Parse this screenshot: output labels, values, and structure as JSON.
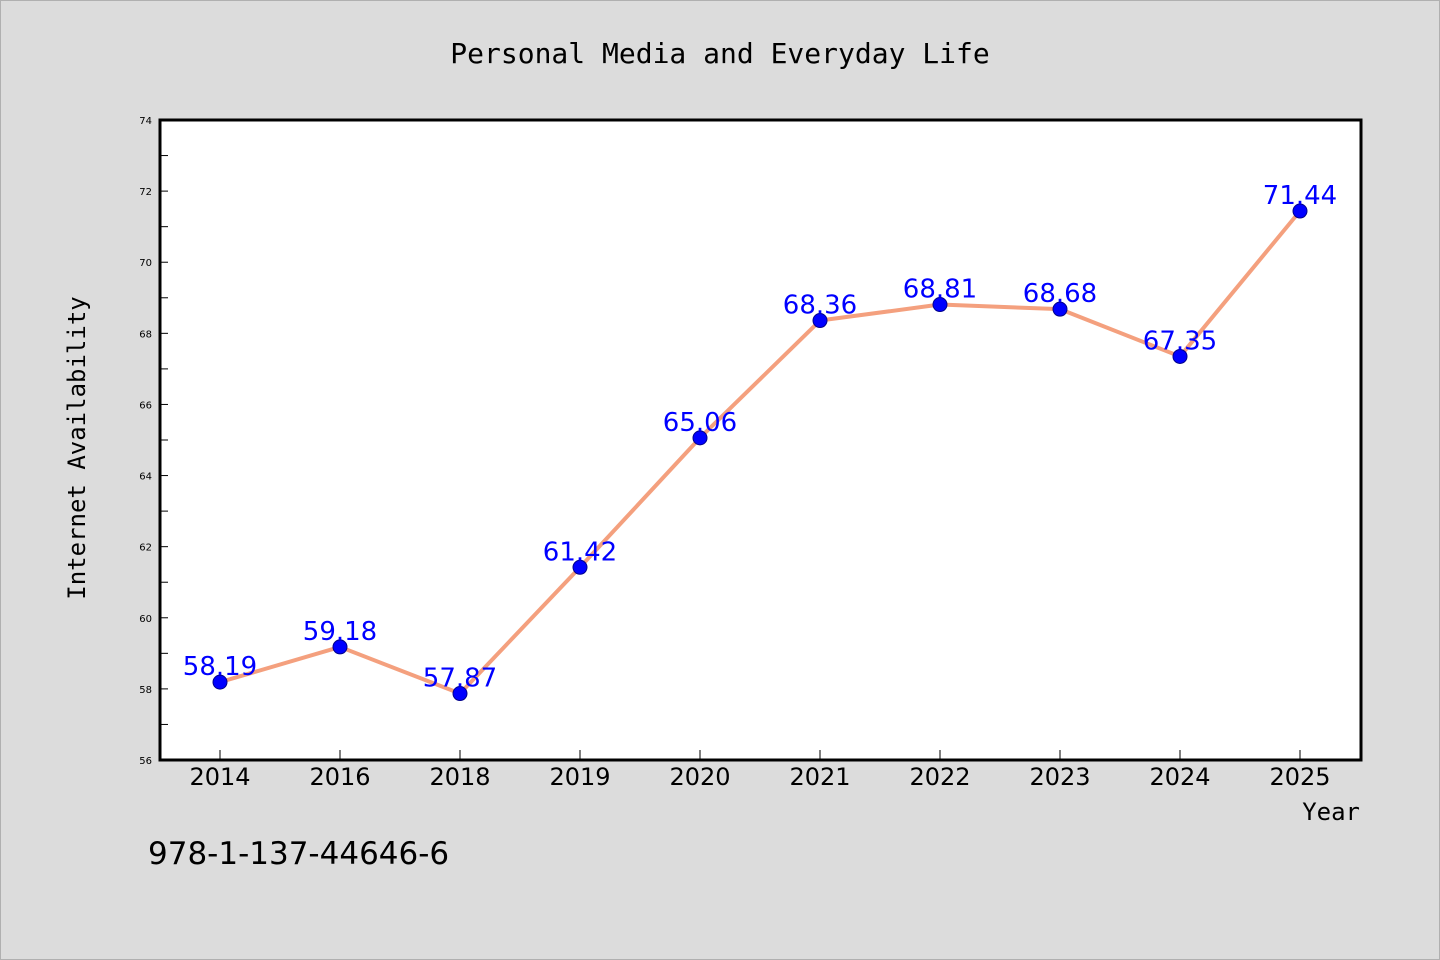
{
  "chart_data": {
    "type": "line",
    "title": "Personal Media and Everyday Life",
    "xlabel": "Year",
    "ylabel": "Internet Availability",
    "categories": [
      "2014",
      "2016",
      "2018",
      "2019",
      "2020",
      "2021",
      "2022",
      "2023",
      "2024",
      "2025"
    ],
    "series": [
      {
        "values": [
          58.19,
          59.18,
          57.87,
          61.42,
          65.06,
          68.36,
          68.81,
          68.68,
          67.35,
          71.44
        ],
        "data_labels": [
          "58.19",
          "59.18",
          "57.87",
          "61.42",
          "65.06",
          "68.36",
          "68.81",
          "68.68",
          "67.35",
          "71.44"
        ]
      }
    ],
    "ylim": [
      56,
      74
    ],
    "yticks": [
      "56",
      "58",
      "60",
      "62",
      "64",
      "66",
      "68",
      "70",
      "72",
      "74"
    ],
    "grid": false,
    "legend": "none",
    "colors": {
      "line": "#f4a07e",
      "marker": "#0000ff",
      "data_label": "#0000ff",
      "plot_background": "#ffffff",
      "figure_background": "#dcdcdc"
    }
  },
  "footer": {
    "isbn": "978-1-137-44646-6"
  }
}
